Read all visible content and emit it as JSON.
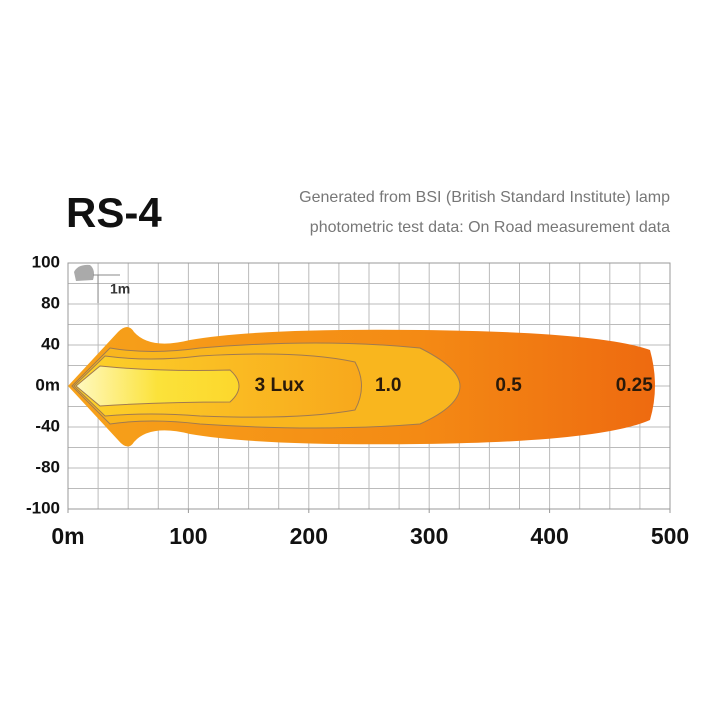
{
  "chart_data": {
    "type": "beam",
    "title": "RS-4",
    "subtitle": [
      "Generated from BSI (British Standard Institute) lamp",
      "photometric test data: On Road measurement data"
    ],
    "y_labels": [
      "100",
      "80",
      "40",
      "0m",
      "-40",
      "-80",
      "-100"
    ],
    "xlim": [
      0,
      500
    ],
    "xticks": [
      {
        "value": 0,
        "label": "0m"
      },
      100,
      200,
      300,
      400,
      500
    ],
    "scale_note": "1m",
    "contours": [
      {
        "label": "3 Lux",
        "x": 150
      },
      {
        "label": "1.0",
        "x": 250
      },
      {
        "label": "0.5",
        "x": 350
      },
      {
        "label": "0.25",
        "x": 450
      }
    ]
  }
}
